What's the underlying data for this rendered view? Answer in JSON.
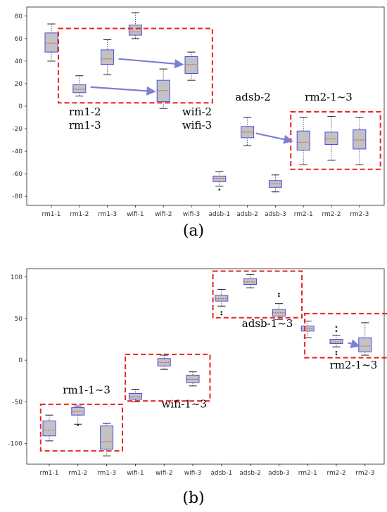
{
  "chart_data": [
    {
      "type": "box",
      "caption": "(a)",
      "categories": [
        "rm1-1",
        "rm1-2",
        "rm1-3",
        "wifi-1",
        "wifi-2",
        "wifi-3",
        "adsb-1",
        "adsb-2",
        "adsb-3",
        "rm2-1",
        "rm2-2",
        "rm2-3"
      ],
      "ylim": [
        -88,
        88
      ],
      "yticks": [
        -80,
        -60,
        -40,
        -20,
        0,
        20,
        40,
        60,
        80
      ],
      "boxes": [
        {
          "q1": 48,
          "med": 56,
          "q3": 65,
          "lo": 40,
          "hi": 73
        },
        {
          "q1": 12,
          "med": 15,
          "q3": 19,
          "lo": 9,
          "hi": 27
        },
        {
          "q1": 37,
          "med": 42,
          "q3": 50,
          "lo": 28,
          "hi": 59
        },
        {
          "q1": 63,
          "med": 66,
          "q3": 72,
          "lo": 60,
          "hi": 83
        },
        {
          "q1": 4,
          "med": 14,
          "q3": 23,
          "lo": -2,
          "hi": 33
        },
        {
          "q1": 29,
          "med": 37,
          "q3": 44,
          "lo": 23,
          "hi": 48
        },
        {
          "q1": -67,
          "med": -64,
          "q3": -62,
          "lo": -71,
          "hi": -58,
          "fl": [
            -74
          ]
        },
        {
          "q1": -28,
          "med": -23,
          "q3": -18,
          "lo": -35,
          "hi": -10
        },
        {
          "q1": -72,
          "med": -69,
          "q3": -66,
          "lo": -76,
          "hi": -61
        },
        {
          "q1": -39,
          "med": -32,
          "q3": -22,
          "lo": -52,
          "hi": -10
        },
        {
          "q1": -34,
          "med": -29,
          "q3": -23,
          "lo": -48,
          "hi": -9
        },
        {
          "q1": -38,
          "med": -30,
          "q3": -21,
          "lo": -52,
          "hi": -10
        }
      ],
      "annotations": [
        {
          "t": "rm1-2",
          "x": 1.2,
          "y": -8
        },
        {
          "t": "rm1-3",
          "x": 1.2,
          "y": -20
        },
        {
          "t": "wifi-2",
          "x": 5.2,
          "y": -8
        },
        {
          "t": "wifi-3",
          "x": 5.2,
          "y": -20
        },
        {
          "t": "adsb-2",
          "x": 7.2,
          "y": 5
        },
        {
          "t": "rm2-1~3",
          "x": 9.9,
          "y": 5
        }
      ]
    },
    {
      "type": "box",
      "caption": "(b)",
      "categories": [
        "rm1-1",
        "rm1-2",
        "rm1-3",
        "wifi-1",
        "wifi-2",
        "wifi-3",
        "adsb-1",
        "adsb-2",
        "adsb-3",
        "rm2-1",
        "rm2-2",
        "rm2-3"
      ],
      "ylim": [
        -125,
        110
      ],
      "yticks": [
        -100,
        -50,
        0,
        50,
        100
      ],
      "boxes": [
        {
          "q1": -91,
          "med": -84,
          "q3": -73,
          "lo": -97,
          "hi": -66
        },
        {
          "q1": -66,
          "med": -62,
          "q3": -57,
          "lo": -77,
          "hi": -55,
          "fl": [
            -78
          ]
        },
        {
          "q1": -107,
          "med": -98,
          "q3": -79,
          "lo": -115,
          "hi": -76
        },
        {
          "q1": -47,
          "med": -44,
          "q3": -40,
          "lo": -50,
          "hi": -35
        },
        {
          "q1": -7,
          "med": -3,
          "q3": 2,
          "lo": -11,
          "hi": 6
        },
        {
          "q1": -27,
          "med": -23,
          "q3": -18,
          "lo": -31,
          "hi": -14
        },
        {
          "q1": 71,
          "med": 74,
          "q3": 78,
          "lo": 65,
          "hi": 85,
          "fl": [
            58,
            55
          ]
        },
        {
          "q1": 91,
          "med": 94,
          "q3": 98,
          "lo": 87,
          "hi": 103
        },
        {
          "q1": 53,
          "med": 57,
          "q3": 61,
          "lo": 49,
          "hi": 68,
          "fl": [
            77,
            80
          ]
        },
        {
          "q1": 35,
          "med": 38,
          "q3": 41,
          "lo": 27,
          "hi": 47
        },
        {
          "q1": 20,
          "med": 22,
          "q3": 25,
          "lo": 16,
          "hi": 30,
          "fl": [
            35,
            40,
            10,
            7
          ]
        },
        {
          "q1": 10,
          "med": 17,
          "q3": 27,
          "lo": 6,
          "hi": 45
        }
      ],
      "annotations": [
        {
          "t": "rm1-1~3",
          "x": 1.3,
          "y": -40
        },
        {
          "t": "wifi-1~3",
          "x": 4.7,
          "y": -57
        },
        {
          "t": "adsb-1~3",
          "x": 7.6,
          "y": 40
        },
        {
          "t": "rm2-1~3",
          "x": 10.6,
          "y": -10
        }
      ]
    }
  ]
}
